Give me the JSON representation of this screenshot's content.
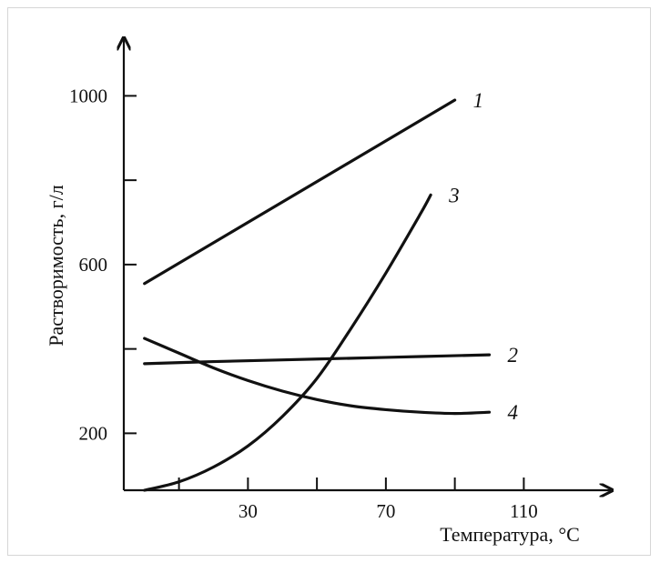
{
  "chart_data": {
    "type": "line",
    "xlabel": "Температура, °C",
    "ylabel": "Растворимость, г/л",
    "xlim": [
      -6,
      126
    ],
    "ylim": [
      65,
      1100
    ],
    "x_ticks": [
      10,
      30,
      50,
      70,
      90,
      110
    ],
    "x_tick_labels": [
      "30",
      "70",
      "110"
    ],
    "x_tick_labeled_values": [
      30,
      70,
      110
    ],
    "y_ticks": [
      200,
      400,
      600,
      800,
      1000
    ],
    "y_tick_labels": [
      "200",
      "600",
      "1000"
    ],
    "y_tick_labeled_values": [
      200,
      600,
      1000
    ],
    "grid": false,
    "series": [
      {
        "name": "1",
        "x": [
          0,
          90
        ],
        "y": [
          555,
          990
        ]
      },
      {
        "name": "2",
        "x": [
          0,
          20,
          40,
          60,
          80,
          100
        ],
        "y": [
          365,
          370,
          374,
          378,
          382,
          386
        ]
      },
      {
        "name": "3",
        "x": [
          0,
          10,
          20,
          30,
          40,
          50,
          60,
          70,
          80,
          83
        ],
        "y": [
          65,
          85,
          120,
          170,
          240,
          330,
          450,
          580,
          720,
          765
        ]
      },
      {
        "name": "4",
        "x": [
          0,
          10,
          20,
          30,
          40,
          50,
          60,
          70,
          80,
          90,
          100
        ],
        "y": [
          425,
          390,
          355,
          325,
          300,
          280,
          265,
          256,
          250,
          247,
          250
        ]
      }
    ]
  }
}
